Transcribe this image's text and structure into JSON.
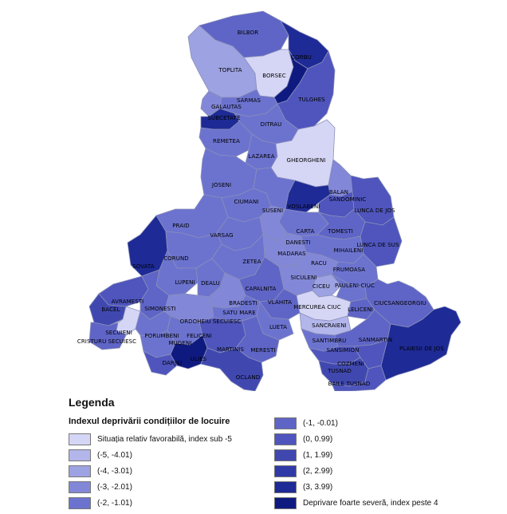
{
  "colors": {
    "c0": "#d5d6f5",
    "c1": "#b3b6ea",
    "c2": "#9da2e2",
    "c3": "#8287d7",
    "c4": "#6c73cf",
    "c5": "#5f65c6",
    "c6": "#4f55bd",
    "c7": "#4048b0",
    "c8": "#303aa6",
    "c9": "#1e2a95",
    "c10": "#0f1a80"
  },
  "legend": {
    "title": "Legenda",
    "subtitle": "Indexul deprivării condițiilor de locuire",
    "items": [
      {
        "label": "Situația relativ favorabilă, index sub -5",
        "color": "c0"
      },
      {
        "label": "(-5, -4.01)",
        "color": "c1"
      },
      {
        "label": "(-4, -3.01)",
        "color": "c2"
      },
      {
        "label": "(-3, -2.01)",
        "color": "c3"
      },
      {
        "label": "(-2, -1.01)",
        "color": "c4"
      },
      {
        "label": "(-1, -0.01)",
        "color": "c5"
      },
      {
        "label": "(0, 0.99)",
        "color": "c6"
      },
      {
        "label": "(1, 1.99)",
        "color": "c7"
      },
      {
        "label": "(2, 2.99)",
        "color": "c8"
      },
      {
        "label": "(3, 3.99)",
        "color": "c9"
      },
      {
        "label": "Deprivare foarte severă, index peste 4",
        "color": "c10"
      }
    ]
  },
  "map": {
    "labels": {
      "bilbor": "BILBOR",
      "corbu": "CORBU",
      "toplita": "TOPLITA",
      "borsec": "BORSEC",
      "sarmas": "SARMAS",
      "tulghes": "TULGHES",
      "galautas": "GALAUTAS",
      "subcetate": "SUBCETATE",
      "ditrau": "DITRAU",
      "remetea": "REMETEA",
      "lazarea": "LAZAREA",
      "gheorgheni": "GHEORGHENI",
      "joseni": "JOSENI",
      "balan": "BALAN",
      "sandominic": "SANDOMINIC",
      "ciumani": "CIUMANI",
      "suseni": "SUSENI",
      "voslabeni": "VOSLABENI",
      "lunca_de_jos": "LUNCA DE JOS",
      "praid": "PRAID",
      "carta": "CARTA",
      "tomesti": "TOMESTI",
      "varsag": "VARSAG",
      "danesti": "DANESTI",
      "lunca_de_sus": "LUNCA DE SUS",
      "sovata": "SOVATA",
      "corund": "CORUND",
      "madaras": "MADARAS",
      "mihaileni": "MIHAILENI",
      "zetea": "ZETEA",
      "racu": "RACU",
      "frumoasa": "FRUMOASA",
      "lupeni": "LUPENI",
      "dealu": "DEALU",
      "siculeni": "SICULENI",
      "ciceu": "CICEU",
      "pauleni_ciuc": "PAULENI-CIUC",
      "capalnita": "CAPALNITA",
      "avramesti": "AVRAMESTI",
      "simonesti": "SIMONESTI",
      "bradesti": "BRADESTI",
      "vlahita": "VLAHITA",
      "mercurea_ciuc": "MERCUREA CIUC",
      "leliceni": "LELICENI",
      "ciucsangeorgiu": "CIUCSANGEORGIU",
      "bacel": "BACEL",
      "satu_mare": "SATU MARE",
      "odorheiu_secuiesc": "ORDOHEIU SECUIESC",
      "secuieni": "SECUIENI",
      "porumbeni": "PORUMBENI",
      "feliceni": "FELICENI",
      "lueta": "LUETA",
      "sancraieni": "SANCRAIENI",
      "cristuru_secuiesc": "CRISTURU SECUIESC",
      "mugeni": "MUGENI",
      "santimbru": "SANTIMBRU",
      "sanmartin": "SANMARTIN",
      "plaiesii_de_jos": "PLAIESII DE JOS",
      "martinis": "MARTINIS",
      "meresti": "MERESTI",
      "sansimion": "SANSIMION",
      "darjiu": "DARJIU",
      "ulies": "ULIES",
      "cozmeni": "COZMENI",
      "tusnad": "TUSNAD",
      "ocland": "OCLAND",
      "baile_tusnad": "BAILE TUSNAD"
    }
  }
}
